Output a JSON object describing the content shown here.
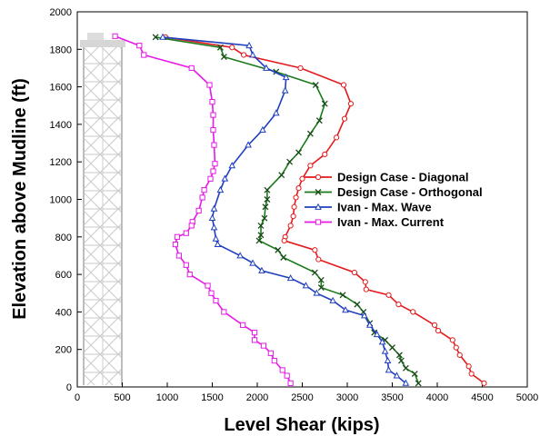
{
  "chart_data": {
    "type": "line",
    "title": "",
    "xlabel": "Level Shear (kips)",
    "ylabel": "Elevation above Mudline (ft)",
    "xlim": [
      0,
      5000
    ],
    "ylim": [
      0,
      2000
    ],
    "xticks": [
      0,
      500,
      1000,
      1500,
      2000,
      2500,
      3000,
      3500,
      4000,
      4500,
      5000
    ],
    "yticks": [
      0,
      200,
      400,
      600,
      800,
      1000,
      1200,
      1400,
      1600,
      1800,
      2000
    ],
    "grid": false,
    "legend": "center-right",
    "background_image": "platform-jacket-structure",
    "series": [
      {
        "name": "Design Case - Diagonal",
        "color": "#e31a1c",
        "marker": "circle",
        "points": [
          [
            980,
            1865
          ],
          [
            1720,
            1810
          ],
          [
            1850,
            1770
          ],
          [
            2480,
            1700
          ],
          [
            2960,
            1610
          ],
          [
            3040,
            1510
          ],
          [
            2970,
            1430
          ],
          [
            2880,
            1330
          ],
          [
            2750,
            1240
          ],
          [
            2590,
            1180
          ],
          [
            2500,
            1110
          ],
          [
            2460,
            1060
          ],
          [
            2430,
            1010
          ],
          [
            2410,
            960
          ],
          [
            2400,
            910
          ],
          [
            2370,
            860
          ],
          [
            2310,
            800
          ],
          [
            2300,
            780
          ],
          [
            2640,
            730
          ],
          [
            2680,
            680
          ],
          [
            3080,
            610
          ],
          [
            3200,
            560
          ],
          [
            3210,
            520
          ],
          [
            3460,
            490
          ],
          [
            3570,
            440
          ],
          [
            3730,
            400
          ],
          [
            3970,
            330
          ],
          [
            4010,
            300
          ],
          [
            4170,
            250
          ],
          [
            4210,
            210
          ],
          [
            4250,
            170
          ],
          [
            4350,
            110
          ],
          [
            4380,
            70
          ],
          [
            4520,
            20
          ]
        ]
      },
      {
        "name": "Design Case - Orthogonal",
        "color": "#1a7a1a",
        "marker": "x",
        "points": [
          [
            870,
            1865
          ],
          [
            1590,
            1810
          ],
          [
            1630,
            1760
          ],
          [
            2210,
            1680
          ],
          [
            2650,
            1610
          ],
          [
            2750,
            1510
          ],
          [
            2690,
            1420
          ],
          [
            2590,
            1350
          ],
          [
            2460,
            1250
          ],
          [
            2360,
            1200
          ],
          [
            2270,
            1130
          ],
          [
            2110,
            1050
          ],
          [
            2110,
            1000
          ],
          [
            2090,
            960
          ],
          [
            2080,
            900
          ],
          [
            2040,
            860
          ],
          [
            2040,
            810
          ],
          [
            2020,
            780
          ],
          [
            2230,
            730
          ],
          [
            2290,
            690
          ],
          [
            2640,
            610
          ],
          [
            2710,
            570
          ],
          [
            2710,
            530
          ],
          [
            2950,
            490
          ],
          [
            3110,
            440
          ],
          [
            3180,
            400
          ],
          [
            3250,
            340
          ],
          [
            3300,
            290
          ],
          [
            3420,
            250
          ],
          [
            3500,
            210
          ],
          [
            3580,
            170
          ],
          [
            3600,
            140
          ],
          [
            3650,
            100
          ],
          [
            3750,
            70
          ],
          [
            3790,
            20
          ]
        ]
      },
      {
        "name": "Ivan - Max. Wave",
        "color": "#1f3fbf",
        "marker": "triangle",
        "points": [
          [
            950,
            1865
          ],
          [
            1910,
            1820
          ],
          [
            1950,
            1770
          ],
          [
            2100,
            1700
          ],
          [
            2320,
            1650
          ],
          [
            2310,
            1580
          ],
          [
            2210,
            1460
          ],
          [
            2060,
            1370
          ],
          [
            1900,
            1290
          ],
          [
            1720,
            1180
          ],
          [
            1640,
            1110
          ],
          [
            1590,
            1050
          ],
          [
            1520,
            950
          ],
          [
            1500,
            900
          ],
          [
            1520,
            850
          ],
          [
            1540,
            790
          ],
          [
            1560,
            760
          ],
          [
            1810,
            700
          ],
          [
            1950,
            660
          ],
          [
            2050,
            620
          ],
          [
            2370,
            580
          ],
          [
            2540,
            540
          ],
          [
            2660,
            500
          ],
          [
            2840,
            460
          ],
          [
            2980,
            410
          ],
          [
            3190,
            380
          ],
          [
            3250,
            330
          ],
          [
            3330,
            280
          ],
          [
            3390,
            240
          ],
          [
            3420,
            190
          ],
          [
            3450,
            140
          ],
          [
            3460,
            90
          ],
          [
            3550,
            60
          ],
          [
            3650,
            20
          ]
        ]
      },
      {
        "name": "Ivan - Max. Current",
        "color": "#e619e6",
        "marker": "square",
        "points": [
          [
            420,
            1870
          ],
          [
            690,
            1820
          ],
          [
            740,
            1770
          ],
          [
            1270,
            1700
          ],
          [
            1470,
            1610
          ],
          [
            1500,
            1520
          ],
          [
            1510,
            1450
          ],
          [
            1510,
            1370
          ],
          [
            1520,
            1290
          ],
          [
            1530,
            1190
          ],
          [
            1510,
            1150
          ],
          [
            1480,
            1110
          ],
          [
            1410,
            1050
          ],
          [
            1390,
            1010
          ],
          [
            1350,
            940
          ],
          [
            1280,
            880
          ],
          [
            1270,
            860
          ],
          [
            1210,
            820
          ],
          [
            1110,
            800
          ],
          [
            1090,
            760
          ],
          [
            1130,
            700
          ],
          [
            1210,
            650
          ],
          [
            1250,
            600
          ],
          [
            1450,
            540
          ],
          [
            1490,
            500
          ],
          [
            1540,
            460
          ],
          [
            1630,
            400
          ],
          [
            1840,
            330
          ],
          [
            1970,
            290
          ],
          [
            1970,
            250
          ],
          [
            2070,
            220
          ],
          [
            2150,
            180
          ],
          [
            2190,
            140
          ],
          [
            2280,
            90
          ],
          [
            2330,
            60
          ],
          [
            2370,
            20
          ]
        ]
      }
    ]
  }
}
